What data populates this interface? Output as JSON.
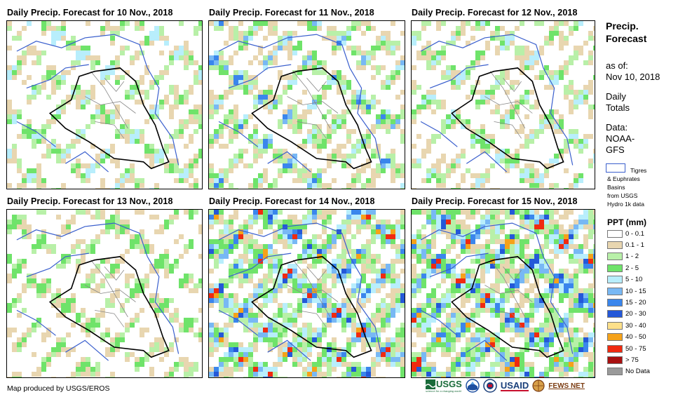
{
  "panels": [
    {
      "title": "Daily Precip. Forecast for 10 Nov., 2018",
      "seed": 11,
      "intensity": 0.35
    },
    {
      "title": "Daily Precip. Forecast for 11 Nov., 2018",
      "seed": 23,
      "intensity": 0.45
    },
    {
      "title": "Daily Precip. Forecast for 12 Nov., 2018",
      "seed": 37,
      "intensity": 0.35
    },
    {
      "title": "Daily Precip. Forecast for 13 Nov., 2018",
      "seed": 51,
      "intensity": 0.3
    },
    {
      "title": "Daily Precip. Forecast for 14 Nov., 2018",
      "seed": 67,
      "intensity": 0.75
    },
    {
      "title": "Daily Precip. Forecast for 15 Nov., 2018",
      "seed": 83,
      "intensity": 0.8
    }
  ],
  "sidebar": {
    "title_line1": "Precip.",
    "title_line2": "Forecast",
    "asof_label": "as of:",
    "asof_date": "Nov 10, 2018",
    "daily_line1": "Daily",
    "daily_line2": "Totals",
    "data_line1": "Data:",
    "data_line2": "NOAA-",
    "data_line3": "GFS",
    "basin_label": "Tigres",
    "basin_line2": "& Euphrates",
    "basin_line3": "Basins",
    "basin_line4": "from USGS",
    "basin_line5": "Hydro 1k data"
  },
  "legend": {
    "title": "PPT (mm)",
    "items": [
      {
        "label": "0 - 0.1",
        "color": "#ffffff"
      },
      {
        "label": "0.1 - 1",
        "color": "#e8d6b0"
      },
      {
        "label": "1 - 2",
        "color": "#b8f0a8"
      },
      {
        "label": "2 - 5",
        "color": "#6fe36a"
      },
      {
        "label": "5 - 10",
        "color": "#b8eefc"
      },
      {
        "label": "10 - 15",
        "color": "#78b8f4"
      },
      {
        "label": "15 - 20",
        "color": "#3a86ec"
      },
      {
        "label": "20 - 30",
        "color": "#2458d8"
      },
      {
        "label": "30 - 40",
        "color": "#fde08a"
      },
      {
        "label": "40 - 50",
        "color": "#f5a21a"
      },
      {
        "label": "50 - 75",
        "color": "#f02a10"
      },
      {
        "label": "> 75",
        "color": "#a81010"
      },
      {
        "label": "No Data",
        "color": "#9a9a9a"
      }
    ]
  },
  "footer": {
    "credit": "Map produced by USGS/EROS"
  },
  "logos": {
    "usgs": "USGS",
    "usaid": "USAID",
    "fewsnet": "FEWS NET",
    "usgs_tagline": "science for a changing world"
  }
}
